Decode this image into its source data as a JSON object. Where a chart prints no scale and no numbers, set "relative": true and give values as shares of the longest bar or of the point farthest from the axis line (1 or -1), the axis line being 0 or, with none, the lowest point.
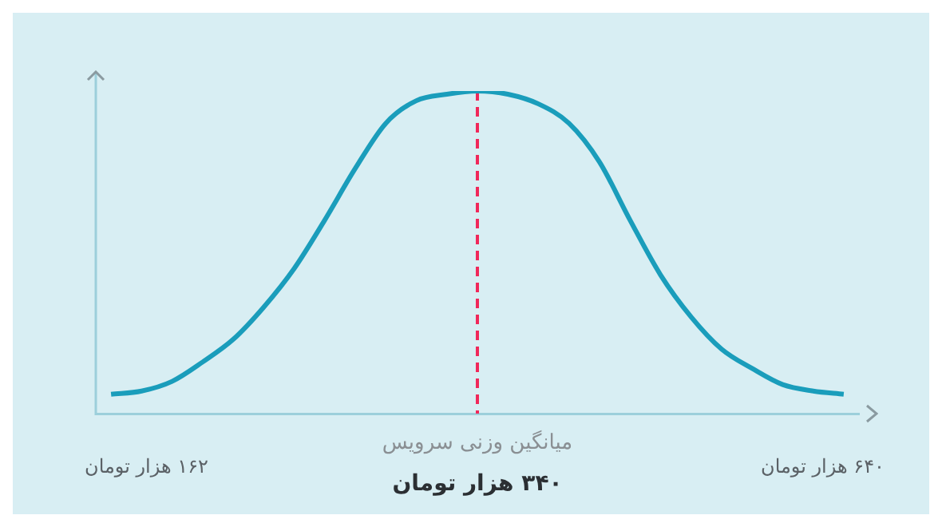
{
  "chart_data": {
    "type": "line",
    "relative": true,
    "marker": "none",
    "legend": false,
    "categories": [
      null,
      null,
      null,
      null,
      null,
      null,
      null,
      null,
      null,
      null,
      null,
      null,
      null,
      null,
      null,
      null,
      null,
      null,
      null,
      null,
      null,
      null,
      null,
      null,
      null
    ],
    "series": [
      {
        "color": "#1a9dbb",
        "values": [
          0.06,
          0.07,
          0.1,
          0.16,
          0.23,
          0.33,
          0.45,
          0.6,
          0.76,
          0.9,
          0.97,
          0.99,
          1,
          0.99,
          0.96,
          0.9,
          0.78,
          0.6,
          0.43,
          0.3,
          0.2,
          0.14,
          0.09,
          0.07,
          0.06
        ]
      }
    ],
    "annotations": [
      "میانگین وزنی سرویس",
      "۳۴۰ هزار تومان",
      "۱۶۲ هزار تومان",
      "۶۴۰ هزار تومان"
    ]
  }
}
